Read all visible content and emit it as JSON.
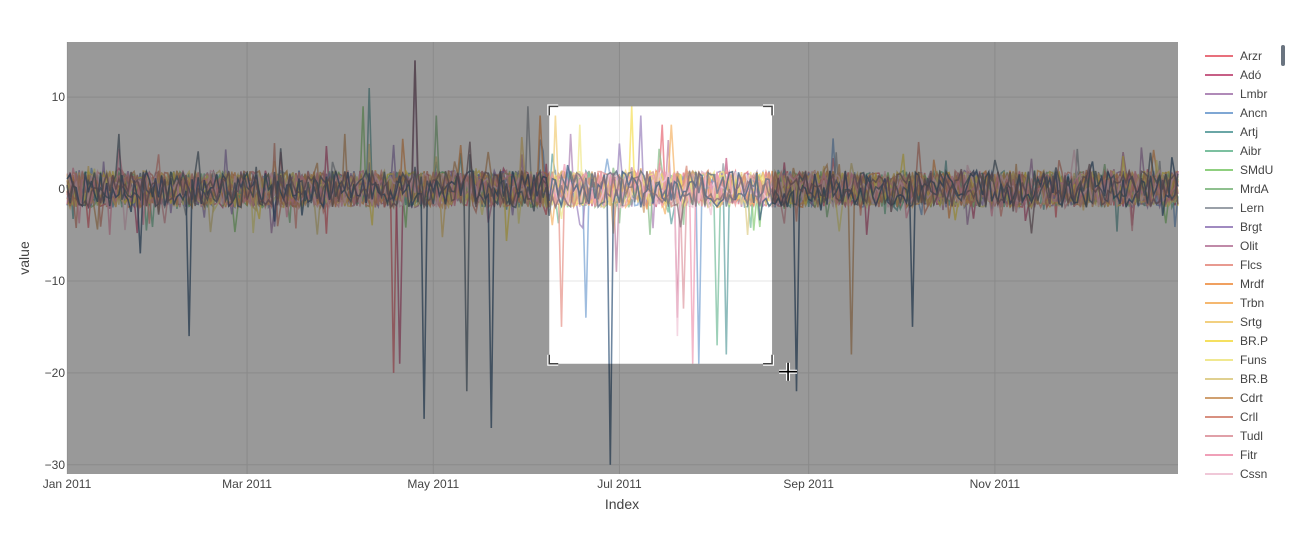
{
  "chart_data": {
    "type": "line",
    "title": "",
    "xlabel": "Index",
    "ylabel": "value",
    "x_range": [
      "2011-01-01",
      "2011-12-31"
    ],
    "x_ticks": [
      {
        "date": "2011-01-01",
        "label": "Jan 2011"
      },
      {
        "date": "2011-03-01",
        "label": "Mar 2011"
      },
      {
        "date": "2011-05-01",
        "label": "May 2011"
      },
      {
        "date": "2011-07-01",
        "label": "Jul 2011"
      },
      {
        "date": "2011-09-01",
        "label": "Sep 2011"
      },
      {
        "date": "2011-11-01",
        "label": "Nov 2011"
      }
    ],
    "ylim": [
      -31,
      16
    ],
    "y_ticks": [
      10,
      0,
      -10,
      -20,
      -30
    ],
    "y_tick_labels": [
      "10",
      "0",
      "−10",
      "−20",
      "−30"
    ],
    "grid": true,
    "legend_position": "right",
    "selection_box": {
      "x": [
        "2011-06-08",
        "2011-08-20"
      ],
      "y": [
        -19,
        9
      ]
    },
    "series": [
      {
        "name": "Arzr",
        "color": "#e8707c",
        "spikes": [
          [
            "2011-04-18",
            -20
          ],
          [
            "2011-07-15",
            7
          ]
        ]
      },
      {
        "name": "Adó",
        "color": "#c75f86",
        "spikes": [
          [
            "2011-04-20",
            -19
          ],
          [
            "2011-07-20",
            -14
          ]
        ]
      },
      {
        "name": "Lmbr",
        "color": "#b08ab8",
        "spikes": [
          [
            "2011-04-25",
            14
          ],
          [
            "2011-06-15",
            6
          ]
        ]
      },
      {
        "name": "Ancn",
        "color": "#7fa7d4",
        "spikes": [
          [
            "2011-06-20",
            -14
          ],
          [
            "2011-07-27",
            -19
          ]
        ]
      },
      {
        "name": "Artj",
        "color": "#6aa6a6",
        "spikes": [
          [
            "2011-08-05",
            -18
          ],
          [
            "2011-04-10",
            11
          ]
        ]
      },
      {
        "name": "Aibr",
        "color": "#7cc0a0",
        "spikes": [
          [
            "2011-08-02",
            -17
          ]
        ]
      },
      {
        "name": "SMdU",
        "color": "#8fcf7f",
        "spikes": [
          [
            "2011-04-08",
            9
          ]
        ]
      },
      {
        "name": "MrdA",
        "color": "#8fc08f",
        "spikes": [
          [
            "2011-05-02",
            8
          ]
        ]
      },
      {
        "name": "Lern",
        "color": "#9aa0a8",
        "spikes": [
          [
            "2011-06-01",
            9
          ]
        ]
      },
      {
        "name": "Brgt",
        "color": "#a08ac0",
        "spikes": [
          [
            "2011-07-08",
            8
          ]
        ]
      },
      {
        "name": "Olit",
        "color": "#c08aa8",
        "spikes": [
          [
            "2011-06-30",
            -9
          ]
        ]
      },
      {
        "name": "Flcs",
        "color": "#e89a90",
        "spikes": [
          [
            "2011-06-12",
            -15
          ]
        ]
      },
      {
        "name": "Mrdf",
        "color": "#f0a060",
        "spikes": [
          [
            "2011-06-05",
            8
          ]
        ]
      },
      {
        "name": "Trbn",
        "color": "#f5b870",
        "spikes": [
          [
            "2011-07-18",
            7
          ]
        ]
      },
      {
        "name": "Srtg",
        "color": "#f2d080",
        "spikes": [
          [
            "2011-06-10",
            8
          ]
        ]
      },
      {
        "name": "BR.P",
        "color": "#f5e060",
        "spikes": [
          [
            "2011-07-05",
            9
          ]
        ]
      },
      {
        "name": "Funs",
        "color": "#f0e890",
        "spikes": [
          [
            "2011-06-18",
            7
          ]
        ]
      },
      {
        "name": "BR.B",
        "color": "#e0d090",
        "spikes": [
          [
            "2011-08-12",
            -5
          ]
        ]
      },
      {
        "name": "Cdrt",
        "color": "#d0a070",
        "spikes": [
          [
            "2011-09-15",
            -18
          ],
          [
            "2011-04-02",
            6
          ]
        ]
      },
      {
        "name": "Crll",
        "color": "#d89080",
        "spikes": [
          [
            "2011-03-10",
            5
          ]
        ]
      },
      {
        "name": "Tudl",
        "color": "#e0a0a8",
        "spikes": [
          [
            "2011-07-22",
            -13
          ]
        ]
      },
      {
        "name": "Fitr",
        "color": "#f0a0b8",
        "spikes": [
          [
            "2011-07-25",
            -19
          ]
        ]
      },
      {
        "name": "Cssn",
        "color": "#f0c8d8",
        "spikes": [
          [
            "2011-07-20",
            -16
          ]
        ]
      },
      {
        "name": "",
        "color": "#3f5f80",
        "spikes": [
          [
            "2011-02-10",
            -16
          ],
          [
            "2011-04-28",
            -25
          ],
          [
            "2011-05-20",
            -26
          ],
          [
            "2011-06-28",
            -30
          ],
          [
            "2011-08-28",
            -22
          ],
          [
            "2011-10-05",
            -15
          ],
          [
            "2011-01-25",
            -7
          ]
        ]
      },
      {
        "name": "",
        "color": "#607080",
        "spikes": [
          [
            "2011-05-12",
            -22
          ],
          [
            "2011-01-18",
            6
          ]
        ]
      },
      {
        "name": "",
        "color": "#88707a",
        "spikes": [
          [
            "2011-04-25",
            14
          ]
        ]
      }
    ]
  }
}
